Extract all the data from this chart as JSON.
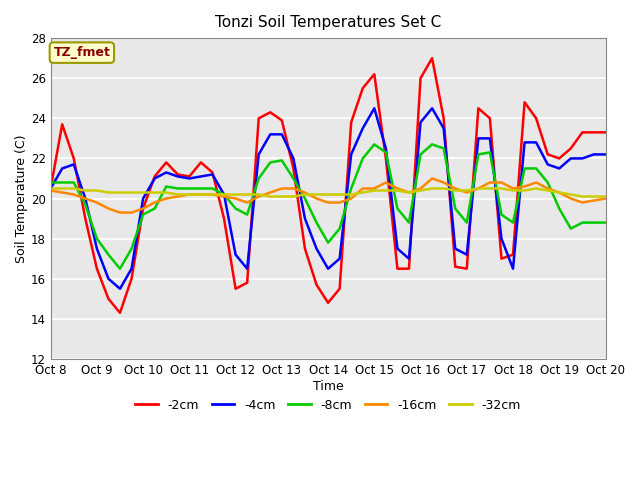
{
  "title": "Tonzi Soil Temperatures Set C",
  "xlabel": "Time",
  "ylabel": "Soil Temperature (C)",
  "ylim": [
    12,
    28
  ],
  "yticks": [
    12,
    14,
    16,
    18,
    20,
    22,
    24,
    26,
    28
  ],
  "xlim": [
    0,
    12
  ],
  "xtick_labels": [
    "Oct 8",
    "Oct 9",
    "Oct 10",
    "Oct 11",
    "Oct 12",
    "Oct 13",
    "Oct 14",
    "Oct 15",
    "Oct 16",
    "Oct 17",
    "Oct 18",
    "Oct 19",
    "Oct 20"
  ],
  "annotation_text": "TZ_fmet",
  "annotation_color": "#8B0000",
  "annotation_bg": "#FFFFCC",
  "annotation_edge": "#999900",
  "bg_color": "#E8E8E8",
  "grid_color": "#FFFFFF",
  "lines": {
    "-2cm": {
      "color": "#FF0000",
      "lw": 1.8
    },
    "-4cm": {
      "color": "#0000FF",
      "lw": 1.8
    },
    "-8cm": {
      "color": "#00CC00",
      "lw": 1.8
    },
    "-16cm": {
      "color": "#FF8800",
      "lw": 1.8
    },
    "-32cm": {
      "color": "#CCCC00",
      "lw": 1.8
    }
  },
  "t": [
    0.0,
    0.25,
    0.5,
    0.75,
    1.0,
    1.25,
    1.5,
    1.75,
    2.0,
    2.25,
    2.5,
    2.75,
    3.0,
    3.25,
    3.5,
    3.75,
    4.0,
    4.25,
    4.5,
    4.75,
    5.0,
    5.25,
    5.5,
    5.75,
    6.0,
    6.25,
    6.5,
    6.75,
    7.0,
    7.25,
    7.5,
    7.75,
    8.0,
    8.25,
    8.5,
    8.75,
    9.0,
    9.25,
    9.5,
    9.75,
    10.0,
    10.25,
    10.5,
    10.75,
    11.0,
    11.25,
    11.5,
    11.75,
    12.0
  ],
  "y_2cm": [
    20.5,
    23.7,
    22.0,
    19.0,
    16.5,
    15.0,
    14.3,
    16.0,
    19.5,
    21.1,
    21.8,
    21.2,
    21.1,
    21.8,
    21.3,
    19.0,
    15.5,
    15.8,
    24.0,
    24.3,
    23.9,
    21.5,
    17.5,
    15.7,
    14.8,
    15.5,
    23.8,
    25.5,
    26.2,
    22.0,
    16.5,
    16.5,
    26.0,
    27.0,
    24.0,
    16.6,
    16.5,
    24.5,
    24.0,
    17.0,
    17.2,
    24.8,
    24.0,
    22.2,
    22.0,
    22.5,
    23.3,
    23.3,
    23.3
  ],
  "y_4cm": [
    20.5,
    21.5,
    21.7,
    20.0,
    17.5,
    16.0,
    15.5,
    16.5,
    20.0,
    21.0,
    21.3,
    21.1,
    21.0,
    21.1,
    21.2,
    20.2,
    17.2,
    16.5,
    22.2,
    23.2,
    23.2,
    22.0,
    19.0,
    17.5,
    16.5,
    17.0,
    22.2,
    23.5,
    24.5,
    22.5,
    17.5,
    17.0,
    23.8,
    24.5,
    23.5,
    17.5,
    17.2,
    23.0,
    23.0,
    18.0,
    16.5,
    22.8,
    22.8,
    21.7,
    21.5,
    22.0,
    22.0,
    22.2,
    22.2
  ],
  "y_8cm": [
    20.8,
    20.8,
    20.8,
    19.7,
    18.0,
    17.2,
    16.5,
    17.5,
    19.2,
    19.5,
    20.6,
    20.5,
    20.5,
    20.5,
    20.5,
    20.2,
    19.5,
    19.2,
    21.0,
    21.8,
    21.9,
    21.0,
    20.0,
    18.8,
    17.8,
    18.5,
    20.5,
    22.0,
    22.7,
    22.3,
    19.5,
    18.8,
    22.2,
    22.7,
    22.5,
    19.5,
    18.8,
    22.2,
    22.3,
    19.2,
    18.8,
    21.5,
    21.5,
    20.8,
    19.5,
    18.5,
    18.8,
    18.8,
    18.8
  ],
  "y_16cm": [
    20.4,
    20.3,
    20.2,
    20.0,
    19.8,
    19.5,
    19.3,
    19.3,
    19.5,
    19.8,
    20.0,
    20.1,
    20.2,
    20.2,
    20.2,
    20.1,
    20.0,
    19.8,
    20.1,
    20.3,
    20.5,
    20.5,
    20.3,
    20.0,
    19.8,
    19.8,
    20.0,
    20.5,
    20.5,
    20.8,
    20.5,
    20.3,
    20.5,
    21.0,
    20.8,
    20.5,
    20.3,
    20.5,
    20.8,
    20.8,
    20.5,
    20.6,
    20.8,
    20.5,
    20.3,
    20.0,
    19.8,
    19.9,
    20.0
  ],
  "y_32cm": [
    20.5,
    20.5,
    20.5,
    20.4,
    20.4,
    20.3,
    20.3,
    20.3,
    20.3,
    20.3,
    20.3,
    20.2,
    20.2,
    20.2,
    20.2,
    20.2,
    20.2,
    20.2,
    20.2,
    20.1,
    20.1,
    20.1,
    20.2,
    20.2,
    20.2,
    20.2,
    20.2,
    20.3,
    20.4,
    20.4,
    20.4,
    20.3,
    20.4,
    20.5,
    20.5,
    20.4,
    20.4,
    20.5,
    20.5,
    20.5,
    20.4,
    20.4,
    20.5,
    20.4,
    20.3,
    20.2,
    20.1,
    20.1,
    20.1
  ]
}
